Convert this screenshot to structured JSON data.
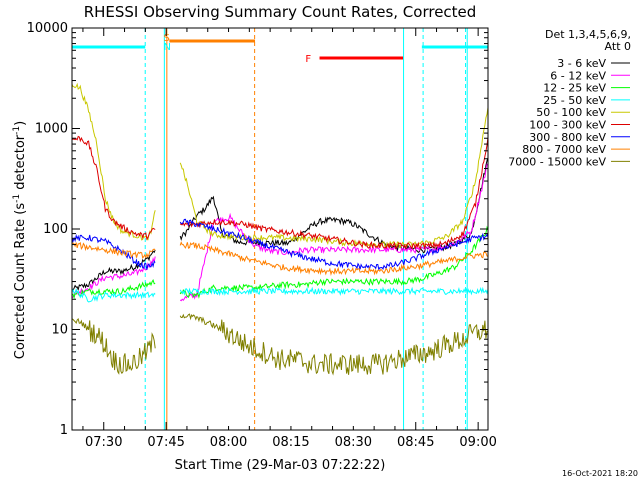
{
  "chart_data": {
    "type": "line",
    "title": "RHESSI Observing Summary Count Rates, Corrected",
    "xlabel": "Start Time (29-Mar-03 07:22:22)",
    "ylabel_main": "Corrected Count Rate (s",
    "ylabel_exp1": "-1",
    "ylabel_mid": " detector",
    "ylabel_exp2": "-1",
    "ylabel_end": ")",
    "y_scale": "log",
    "xlim_minutes": [
      0,
      100
    ],
    "ylim": [
      1,
      10000
    ],
    "x_ticks": [
      {
        "label": "07:30",
        "minute": 7.63
      },
      {
        "label": "07:45",
        "minute": 22.63
      },
      {
        "label": "08:00",
        "minute": 37.63
      },
      {
        "label": "08:15",
        "minute": 52.63
      },
      {
        "label": "08:30",
        "minute": 67.63
      },
      {
        "label": "08:45",
        "minute": 82.63
      },
      {
        "label": "09:00",
        "minute": 97.63
      }
    ],
    "y_ticks": [
      {
        "label": "1",
        "value": 1
      },
      {
        "label": "10",
        "value": 10
      },
      {
        "label": "100",
        "value": 100
      },
      {
        "label": "1000",
        "value": 1000
      },
      {
        "label": "10000",
        "value": 10000
      }
    ],
    "legend_header": [
      "Det 1,3,4,5,6,9,",
      "Att 0"
    ],
    "legend_position": "right",
    "grid": false,
    "series": [
      {
        "name": "3 - 6 keV",
        "color": "#000000",
        "points": [
          [
            0,
            25
          ],
          [
            4,
            28
          ],
          [
            8,
            38
          ],
          [
            12,
            38
          ],
          [
            15,
            42
          ],
          [
            18,
            50
          ],
          [
            20,
            62
          ],
          [
            23,
            72
          ],
          [
            26,
            80
          ],
          [
            28,
            100
          ],
          [
            30,
            135
          ],
          [
            32,
            160
          ],
          [
            34,
            210
          ],
          [
            36,
            90
          ],
          [
            40,
            74
          ],
          [
            44,
            73
          ],
          [
            48,
            73
          ],
          [
            52,
            72
          ],
          [
            56,
            95
          ],
          [
            58,
            110
          ],
          [
            60,
            120
          ],
          [
            62,
            122
          ],
          [
            64,
            122
          ],
          [
            66,
            118
          ],
          [
            68,
            110
          ],
          [
            72,
            85
          ],
          [
            76,
            68
          ],
          [
            80,
            64
          ],
          [
            84,
            62
          ],
          [
            88,
            64
          ],
          [
            92,
            70
          ],
          [
            96,
            90
          ],
          [
            100,
            520
          ]
        ],
        "segments": [
          [
            0,
            20
          ],
          [
            26,
            100
          ]
        ]
      },
      {
        "name": "6 - 12 keV",
        "color": "#ff00ff",
        "points": [
          [
            0,
            22
          ],
          [
            4,
            26
          ],
          [
            8,
            33
          ],
          [
            12,
            34
          ],
          [
            15,
            36
          ],
          [
            18,
            42
          ],
          [
            20,
            50
          ],
          [
            22,
            60
          ],
          [
            24,
            62
          ],
          [
            26,
            20
          ],
          [
            30,
            22
          ],
          [
            32,
            50
          ],
          [
            34,
            120
          ],
          [
            38,
            130
          ],
          [
            40,
            100
          ],
          [
            44,
            68
          ],
          [
            48,
            60
          ],
          [
            52,
            58
          ],
          [
            56,
            62
          ],
          [
            60,
            62
          ],
          [
            64,
            62
          ],
          [
            68,
            62
          ],
          [
            72,
            62
          ],
          [
            76,
            62
          ],
          [
            80,
            62
          ],
          [
            84,
            62
          ],
          [
            88,
            64
          ],
          [
            92,
            72
          ],
          [
            96,
            95
          ],
          [
            100,
            460
          ]
        ],
        "segments": [
          [
            0,
            20
          ],
          [
            26,
            100
          ]
        ]
      },
      {
        "name": "12 - 25 keV",
        "color": "#00ff00",
        "points": [
          [
            0,
            22
          ],
          [
            4,
            24
          ],
          [
            8,
            24
          ],
          [
            12,
            24
          ],
          [
            15,
            26
          ],
          [
            18,
            28
          ],
          [
            20,
            30
          ],
          [
            22,
            32
          ],
          [
            24,
            30
          ],
          [
            26,
            24
          ],
          [
            28,
            22
          ],
          [
            30,
            22
          ],
          [
            32,
            24
          ],
          [
            34,
            26
          ],
          [
            36,
            26
          ],
          [
            40,
            26
          ],
          [
            44,
            26
          ],
          [
            48,
            27
          ],
          [
            52,
            28
          ],
          [
            56,
            28
          ],
          [
            60,
            30
          ],
          [
            64,
            30
          ],
          [
            68,
            30
          ],
          [
            72,
            30
          ],
          [
            76,
            30
          ],
          [
            80,
            30
          ],
          [
            84,
            32
          ],
          [
            88,
            36
          ],
          [
            92,
            42
          ],
          [
            96,
            60
          ],
          [
            100,
            100
          ]
        ],
        "segments": [
          [
            0,
            20
          ],
          [
            26,
            100
          ]
        ]
      },
      {
        "name": "25 - 50 keV",
        "color": "#00ffff",
        "points": [
          [
            0,
            25
          ],
          [
            4,
            20
          ],
          [
            8,
            22
          ],
          [
            12,
            22
          ],
          [
            15,
            22
          ],
          [
            18,
            22
          ],
          [
            20,
            22
          ],
          [
            22,
            22
          ],
          [
            24,
            22
          ],
          [
            26,
            24
          ],
          [
            28,
            24
          ],
          [
            30,
            24
          ],
          [
            32,
            24
          ],
          [
            34,
            24
          ],
          [
            36,
            24
          ],
          [
            40,
            24
          ],
          [
            44,
            24
          ],
          [
            48,
            24
          ],
          [
            52,
            24
          ],
          [
            56,
            24
          ],
          [
            60,
            24
          ],
          [
            64,
            24
          ],
          [
            68,
            24
          ],
          [
            72,
            24
          ],
          [
            76,
            24
          ],
          [
            80,
            24
          ],
          [
            84,
            24
          ],
          [
            88,
            24
          ],
          [
            92,
            24
          ],
          [
            96,
            24
          ],
          [
            100,
            24
          ]
        ],
        "segments": [
          [
            0,
            20
          ],
          [
            26,
            100
          ]
        ]
      },
      {
        "name": "50 - 100 keV",
        "color": "#c8c800",
        "points": [
          [
            0,
            2800
          ],
          [
            2,
            2500
          ],
          [
            4,
            1500
          ],
          [
            6,
            700
          ],
          [
            8,
            200
          ],
          [
            10,
            120
          ],
          [
            12,
            95
          ],
          [
            14,
            90
          ],
          [
            16,
            85
          ],
          [
            18,
            80
          ],
          [
            19,
            92
          ],
          [
            20,
            150
          ],
          [
            26,
            480
          ],
          [
            28,
            250
          ],
          [
            30,
            120
          ],
          [
            34,
            88
          ],
          [
            38,
            84
          ],
          [
            42,
            82
          ],
          [
            46,
            82
          ],
          [
            50,
            82
          ],
          [
            54,
            80
          ],
          [
            58,
            80
          ],
          [
            62,
            76
          ],
          [
            66,
            73
          ],
          [
            70,
            72
          ],
          [
            74,
            70
          ],
          [
            78,
            70
          ],
          [
            82,
            70
          ],
          [
            86,
            74
          ],
          [
            90,
            84
          ],
          [
            94,
            120
          ],
          [
            97,
            300
          ],
          [
            100,
            1700
          ]
        ],
        "segments": [
          [
            0,
            20
          ],
          [
            26,
            100
          ]
        ]
      },
      {
        "name": "100 - 300 keV",
        "color": "#dd0000",
        "points": [
          [
            0,
            780
          ],
          [
            2,
            800
          ],
          [
            4,
            700
          ],
          [
            6,
            380
          ],
          [
            8,
            160
          ],
          [
            10,
            120
          ],
          [
            12,
            105
          ],
          [
            14,
            95
          ],
          [
            16,
            88
          ],
          [
            18,
            85
          ],
          [
            20,
            100
          ],
          [
            26,
            110
          ],
          [
            30,
            112
          ],
          [
            34,
            118
          ],
          [
            38,
            116
          ],
          [
            42,
            110
          ],
          [
            46,
            100
          ],
          [
            50,
            95
          ],
          [
            54,
            90
          ],
          [
            58,
            85
          ],
          [
            62,
            80
          ],
          [
            66,
            75
          ],
          [
            70,
            70
          ],
          [
            74,
            68
          ],
          [
            78,
            68
          ],
          [
            82,
            68
          ],
          [
            86,
            68
          ],
          [
            90,
            72
          ],
          [
            94,
            90
          ],
          [
            97,
            180
          ],
          [
            100,
            800
          ]
        ],
        "segments": [
          [
            0,
            20
          ],
          [
            26,
            100
          ]
        ]
      },
      {
        "name": "300 - 800 keV",
        "color": "#0000ff",
        "points": [
          [
            0,
            80
          ],
          [
            4,
            82
          ],
          [
            8,
            75
          ],
          [
            12,
            60
          ],
          [
            16,
            45
          ],
          [
            18,
            42
          ],
          [
            20,
            45
          ],
          [
            26,
            120
          ],
          [
            30,
            112
          ],
          [
            34,
            100
          ],
          [
            38,
            90
          ],
          [
            42,
            80
          ],
          [
            46,
            70
          ],
          [
            50,
            62
          ],
          [
            54,
            55
          ],
          [
            58,
            50
          ],
          [
            62,
            46
          ],
          [
            66,
            44
          ],
          [
            70,
            42
          ],
          [
            74,
            42
          ],
          [
            78,
            44
          ],
          [
            82,
            50
          ],
          [
            86,
            58
          ],
          [
            90,
            66
          ],
          [
            94,
            74
          ],
          [
            96,
            80
          ],
          [
            100,
            85
          ]
        ],
        "segments": [
          [
            0,
            20
          ],
          [
            26,
            100
          ]
        ]
      },
      {
        "name": "800 - 7000 keV",
        "color": "#ff8000",
        "points": [
          [
            0,
            70
          ],
          [
            4,
            66
          ],
          [
            8,
            62
          ],
          [
            12,
            58
          ],
          [
            16,
            55
          ],
          [
            18,
            55
          ],
          [
            20,
            60
          ],
          [
            26,
            70
          ],
          [
            30,
            68
          ],
          [
            34,
            62
          ],
          [
            38,
            56
          ],
          [
            42,
            50
          ],
          [
            46,
            46
          ],
          [
            50,
            42
          ],
          [
            54,
            40
          ],
          [
            58,
            39
          ],
          [
            62,
            38
          ],
          [
            66,
            38
          ],
          [
            70,
            38
          ],
          [
            74,
            38
          ],
          [
            78,
            40
          ],
          [
            82,
            42
          ],
          [
            86,
            45
          ],
          [
            90,
            48
          ],
          [
            94,
            52
          ],
          [
            96,
            54
          ],
          [
            100,
            56
          ]
        ],
        "segments": [
          [
            0,
            20
          ],
          [
            26,
            100
          ]
        ]
      },
      {
        "name": "7000 - 15000 keV",
        "color": "#808000",
        "points": [
          [
            0,
            12
          ],
          [
            2,
            12
          ],
          [
            4,
            10
          ],
          [
            6,
            9
          ],
          [
            8,
            7
          ],
          [
            10,
            5
          ],
          [
            12,
            4.5
          ],
          [
            14,
            4.5
          ],
          [
            16,
            5
          ],
          [
            18,
            6
          ],
          [
            20,
            8
          ],
          [
            26,
            14
          ],
          [
            30,
            13
          ],
          [
            34,
            11
          ],
          [
            38,
            9
          ],
          [
            42,
            7
          ],
          [
            46,
            6
          ],
          [
            50,
            5
          ],
          [
            54,
            5
          ],
          [
            58,
            4.5
          ],
          [
            62,
            4.5
          ],
          [
            66,
            4.5
          ],
          [
            70,
            4.5
          ],
          [
            74,
            4.5
          ],
          [
            78,
            5
          ],
          [
            82,
            5.5
          ],
          [
            86,
            6
          ],
          [
            90,
            7
          ],
          [
            94,
            8
          ],
          [
            96,
            9
          ],
          [
            100,
            10
          ]
        ],
        "segments": [
          [
            0,
            20
          ],
          [
            26,
            100
          ]
        ]
      }
    ],
    "annotations": {
      "flags": [
        {
          "label": "S",
          "color": "#ff8000"
        },
        {
          "label": "N",
          "color": "#00ffff"
        },
        {
          "label": "F",
          "color": "#ff0000"
        }
      ]
    },
    "footer_date": "16-Oct-2021 18:20"
  }
}
